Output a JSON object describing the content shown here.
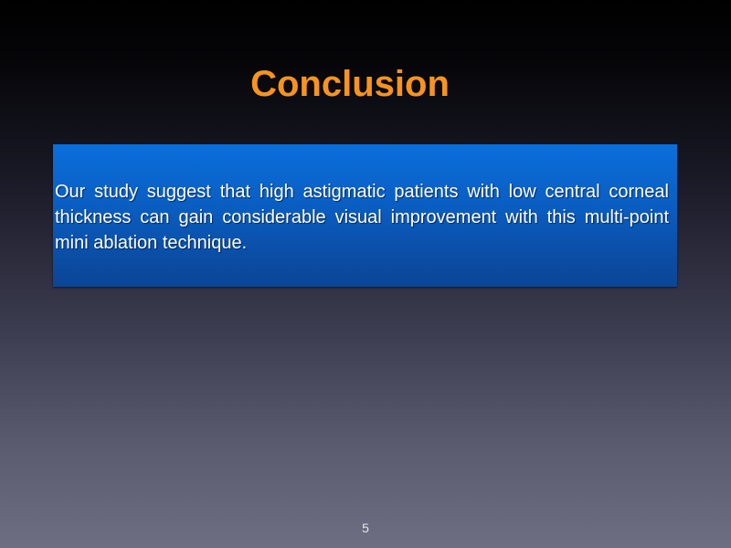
{
  "slide": {
    "title": "Conclusion",
    "body": "Our study suggest that high astigmatic patients with low central corneal thickness can gain considerable visual improvement with this multi-point mini ablation technique.",
    "page_number": "5"
  },
  "colors": {
    "title": "#f7941d",
    "box_top": "#0a6fdc",
    "box_bottom": "#0b4595",
    "body_text": "#ffffff"
  }
}
